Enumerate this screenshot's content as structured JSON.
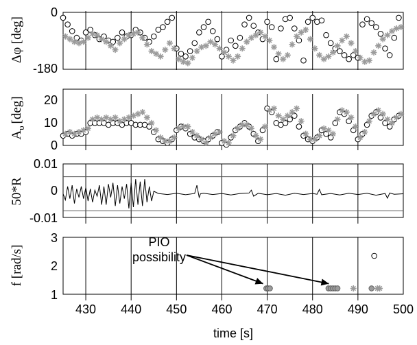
{
  "chart_data": [
    {
      "type": "scatter",
      "ylabel": "Δφ [deg]",
      "ylim": [
        -180,
        0
      ],
      "yticks": [
        "0",
        "-180"
      ],
      "xlim": [
        425,
        500
      ],
      "vlines": [
        430,
        440,
        450,
        460,
        470,
        480,
        490
      ],
      "series": [
        {
          "marker": "circle-open",
          "x": [
            425,
            426,
            427,
            428,
            429,
            430,
            431,
            432,
            433,
            434,
            435,
            436,
            437,
            438,
            439,
            440,
            441,
            442,
            443,
            444,
            445,
            446,
            447,
            448,
            449,
            450,
            451,
            452,
            453,
            454,
            455,
            456,
            457,
            458,
            459,
            460,
            461,
            462,
            463,
            464,
            465,
            466,
            467,
            468,
            469,
            470,
            471,
            472,
            473,
            474,
            475,
            476,
            477,
            478,
            479,
            480,
            481,
            482,
            483,
            484,
            485,
            486,
            487,
            488,
            489,
            490,
            491,
            492,
            493,
            494,
            495,
            496,
            497,
            498,
            499
          ],
          "y": [
            -5,
            -30,
            -55,
            -80,
            -90,
            -60,
            -50,
            -70,
            -85,
            -75,
            -90,
            -95,
            -80,
            -60,
            -75,
            -70,
            -50,
            -60,
            -80,
            -95,
            -75,
            -50,
            -40,
            -20,
            -5,
            -120,
            -140,
            -150,
            -130,
            -100,
            -60,
            -40,
            -20,
            -55,
            -85,
            -150,
            -125,
            -90,
            -110,
            -80,
            -30,
            -5,
            -35,
            -60,
            -85,
            -20,
            -40,
            -160,
            -45,
            -10,
            -5,
            -45,
            -90,
            -165,
            -20,
            -5,
            -20,
            -15,
            -70,
            -100,
            -120,
            -130,
            -145,
            -160,
            -145,
            -155,
            -30,
            -10,
            -25,
            -40,
            -65,
            -120,
            -145,
            -80,
            -5
          ]
        },
        {
          "marker": "star-gray",
          "x": [
            425.5,
            426.5,
            427.5,
            428.5,
            429.5,
            430.5,
            431.5,
            432.5,
            433.5,
            434.5,
            435.5,
            436.5,
            437.5,
            438.5,
            439.5,
            440.5,
            441.5,
            442.5,
            443.5,
            444.5,
            445.5,
            446.5,
            447.5,
            448.5,
            449.5,
            450.5,
            451.5,
            452.5,
            453.5,
            454.5,
            455.5,
            456.5,
            457.5,
            458.5,
            459.5,
            460.5,
            461.5,
            462.5,
            463.5,
            464.5,
            465.5,
            466.5,
            467.5,
            468.5,
            469.5,
            470.5,
            471.5,
            472.5,
            473.5,
            474.5,
            475.5,
            476.5,
            477.5,
            478.5,
            479.5,
            480.5,
            481.5,
            482.5,
            483.5,
            484.5,
            485.5,
            486.5,
            487.5,
            488.5,
            489.5,
            490.5,
            491.5,
            492.5,
            493.5,
            494.5,
            495.5,
            496.5,
            497.5,
            498.5,
            499.5
          ],
          "y": [
            -75,
            -85,
            -95,
            -100,
            -95,
            -80,
            -65,
            -70,
            -85,
            -95,
            -110,
            -125,
            -100,
            -85,
            -70,
            -65,
            -60,
            -80,
            -105,
            -130,
            -140,
            -150,
            -125,
            -100,
            -120,
            -160,
            -170,
            -175,
            -155,
            -130,
            -115,
            -110,
            -95,
            -105,
            -120,
            -135,
            -150,
            -165,
            -150,
            -120,
            -95,
            -80,
            -70,
            -60,
            -75,
            -90,
            -115,
            -140,
            -160,
            -145,
            -105,
            -75,
            -60,
            -50,
            -85,
            -120,
            -145,
            -160,
            -150,
            -135,
            -110,
            -90,
            -75,
            -100,
            -130,
            -155,
            -170,
            -165,
            -135,
            -110,
            -85,
            -70,
            -55,
            -45,
            -40
          ]
        }
      ]
    },
    {
      "type": "scatter",
      "ylabel": "A",
      "ylabel_sub": "υ",
      "ylabel_unit": "[deg]",
      "ylim": [
        0,
        25
      ],
      "yticks": [
        "0",
        "10",
        "20"
      ],
      "xlim": [
        425,
        500
      ],
      "vlines": [
        430,
        440,
        450,
        460,
        470,
        480,
        490
      ],
      "series": [
        {
          "marker": "circle-open",
          "x": [
            425,
            426,
            427,
            428,
            429,
            430,
            431,
            432,
            433,
            434,
            435,
            436,
            437,
            438,
            439,
            440,
            441,
            442,
            443,
            444,
            445,
            446,
            447,
            448,
            449,
            450,
            451,
            452,
            453,
            454,
            455,
            456,
            457,
            458,
            459,
            460,
            461,
            462,
            463,
            464,
            465,
            466,
            467,
            468,
            469,
            470,
            471,
            472,
            473,
            474,
            475,
            476,
            477,
            478,
            479,
            480,
            481,
            482,
            483,
            484,
            485,
            486,
            487,
            488,
            489,
            490,
            491,
            492,
            493,
            494,
            495,
            496,
            497,
            498,
            499
          ],
          "y": [
            5,
            6,
            5,
            6,
            6,
            7,
            12,
            12,
            12,
            12,
            11,
            12,
            12,
            11,
            12,
            12,
            11,
            11,
            11,
            10,
            7,
            3,
            2,
            1,
            3,
            8,
            10,
            9,
            6,
            4,
            3,
            2,
            3,
            5,
            7,
            1,
            0,
            4,
            8,
            10,
            12,
            10,
            6,
            2,
            8,
            20,
            18,
            12,
            11,
            12,
            14,
            16,
            10,
            5,
            3,
            2,
            4,
            8,
            6,
            4,
            12,
            18,
            17,
            13,
            8,
            3,
            6,
            11,
            16,
            18,
            15,
            12,
            10,
            14,
            16
          ]
        },
        {
          "marker": "star-gray",
          "x": [
            425.5,
            426.5,
            427.5,
            428.5,
            429.5,
            430.5,
            431.5,
            432.5,
            433.5,
            434.5,
            435.5,
            436.5,
            437.5,
            438.5,
            439.5,
            440.5,
            441.5,
            442.5,
            443.5,
            444.5,
            445.5,
            446.5,
            447.5,
            448.5,
            449.5,
            450.5,
            451.5,
            452.5,
            453.5,
            454.5,
            455.5,
            456.5,
            457.5,
            458.5,
            459.5,
            460.5,
            461.5,
            462.5,
            463.5,
            464.5,
            465.5,
            466.5,
            467.5,
            468.5,
            469.5,
            470.5,
            471.5,
            472.5,
            473.5,
            474.5,
            475.5,
            476.5,
            477.5,
            478.5,
            479.5,
            480.5,
            481.5,
            482.5,
            483.5,
            484.5,
            485.5,
            486.5,
            487.5,
            488.5,
            489.5,
            490.5,
            491.5,
            492.5,
            493.5,
            494.5,
            495.5,
            496.5,
            497.5,
            498.5,
            499.5
          ],
          "y": [
            6,
            7,
            6,
            7,
            8,
            9,
            14,
            15,
            14,
            15,
            14,
            15,
            13,
            14,
            15,
            16,
            17,
            18,
            15,
            12,
            8,
            4,
            2,
            2,
            4,
            9,
            10,
            10,
            7,
            5,
            3,
            1,
            4,
            6,
            7,
            2,
            1,
            5,
            9,
            11,
            11,
            9,
            5,
            3,
            10,
            19,
            20,
            16,
            14,
            16,
            18,
            20,
            13,
            6,
            3,
            3,
            5,
            9,
            8,
            6,
            14,
            19,
            18,
            15,
            10,
            4,
            7,
            13,
            17,
            19,
            17,
            14,
            12,
            15,
            17
          ]
        }
      ]
    },
    {
      "type": "line",
      "ylabel": "50*R",
      "ylim": [
        -0.01,
        0.01
      ],
      "yticks": [
        "0.01",
        "0",
        "-0.01"
      ],
      "hlines": [
        0.007,
        -0.007
      ],
      "xlim": [
        425,
        500
      ],
      "vlines": [
        430,
        440,
        450,
        460,
        470,
        480,
        490
      ],
      "series": [
        {
          "x": [
            425,
            425.5,
            426,
            426.5,
            427,
            427.5,
            428,
            428.5,
            429,
            429.5,
            430,
            430.5,
            431,
            431.5,
            432,
            432.5,
            433,
            433.5,
            434,
            434.5,
            435,
            435.5,
            436,
            436.5,
            437,
            437.5,
            438,
            438.5,
            439,
            439.5,
            440,
            440.5,
            441,
            441.5,
            442,
            442.5,
            443,
            443.5,
            444,
            444.5,
            445,
            446,
            448,
            450,
            452,
            454,
            454.5,
            455,
            455.3,
            456,
            458,
            460,
            462,
            464,
            466,
            466.5,
            467,
            468,
            470,
            472,
            474,
            476,
            478,
            480,
            481,
            481.5,
            482,
            484,
            486,
            488,
            490,
            492,
            494,
            496,
            496.5,
            497,
            498,
            500
          ],
          "y": [
            0,
            -0.0025,
            0.003,
            -0.002,
            0.0035,
            -0.004,
            0.002,
            -0.0015,
            0.003,
            -0.002,
            0.0025,
            -0.003,
            0.002,
            -0.0035,
            0.0015,
            -0.001,
            0.0035,
            -0.0045,
            0.003,
            -0.0045,
            0.004,
            -0.0015,
            0.0045,
            -0.005,
            0.0035,
            -0.004,
            0.003,
            -0.002,
            0.004,
            -0.006,
            0.0045,
            -0.0055,
            0.006,
            -0.0045,
            0.005,
            -0.005,
            0.006,
            -0.0035,
            0.003,
            -0.003,
            0.001,
            0.0001,
            -0.0003,
            0.0002,
            -0.0004,
            0.0001,
            0.0035,
            -0.0015,
            0,
            0.0002,
            -0.0003,
            0.0001,
            -0.0005,
            0.0001,
            0.0003,
            0.0015,
            -0.001,
            0.0002,
            -0.0004,
            0.0001,
            -0.0006,
            0.0002,
            -0.0003,
            0.0001,
            -0.0002,
            0.0018,
            -0.0004,
            0.0001,
            -0.0005,
            0.0002,
            -0.0003,
            0.0002,
            -0.0006,
            0.0001,
            -0.0018,
            0.0003,
            -0.0002,
            0
          ]
        }
      ]
    },
    {
      "type": "scatter",
      "ylabel": "f [rad/s]",
      "ylim": [
        1,
        3
      ],
      "yticks": [
        "3",
        "2",
        "1"
      ],
      "xlim": [
        425,
        500
      ],
      "xticks": [
        "430",
        "440",
        "450",
        "460",
        "470",
        "480",
        "490",
        "500"
      ],
      "xlabel": "time [s]",
      "vlines": [
        430,
        440,
        450,
        460,
        470,
        480,
        490
      ],
      "annotation": {
        "text": [
          "PIO",
          "possibility"
        ],
        "targets": [
          [
            470,
            1.3
          ],
          [
            484.5,
            1.3
          ]
        ]
      },
      "series": [
        {
          "marker": "circle-gray",
          "x": [
            469.8,
            470.2,
            470.6,
            483.5,
            484,
            484.5,
            485,
            485.5,
            493
          ],
          "y": [
            1.25,
            1.25,
            1.25,
            1.25,
            1.25,
            1.25,
            1.25,
            1.25,
            1.25
          ]
        },
        {
          "marker": "circle-open",
          "x": [
            493.6
          ],
          "y": [
            2.5
          ]
        },
        {
          "marker": "star-gray",
          "x": [
            489,
            494.3,
            494.8
          ],
          "y": [
            1.25,
            1.25,
            1.25
          ]
        }
      ]
    }
  ]
}
